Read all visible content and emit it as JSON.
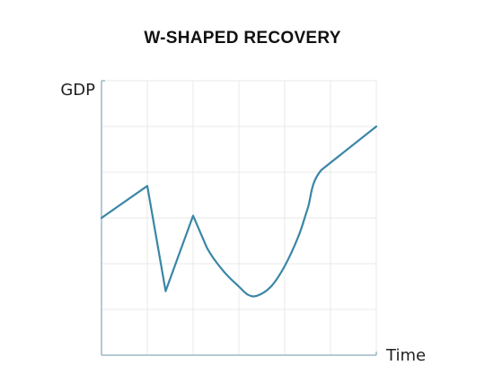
{
  "chart_data": {
    "type": "line",
    "title": "W-SHAPED RECOVERY",
    "xlabel": "Time",
    "ylabel": "GDP",
    "grid": true,
    "ticks_labeled": false,
    "xlim": [
      0,
      6
    ],
    "ylim": [
      0,
      6
    ],
    "series": [
      {
        "color": "#3a86a6",
        "points": [
          [
            0,
            3.0
          ],
          [
            1.0,
            3.7
          ],
          [
            1.4,
            1.4
          ],
          [
            2.0,
            3.05
          ],
          [
            2.3,
            2.35
          ],
          [
            2.65,
            1.85
          ],
          [
            3.0,
            1.5
          ],
          [
            3.2,
            1.32
          ],
          [
            3.4,
            1.3
          ],
          [
            3.7,
            1.5
          ],
          [
            4.0,
            1.95
          ],
          [
            4.3,
            2.6
          ],
          [
            4.5,
            3.2
          ],
          [
            4.8,
            4.05
          ],
          [
            6.0,
            5.0
          ]
        ]
      }
    ]
  }
}
